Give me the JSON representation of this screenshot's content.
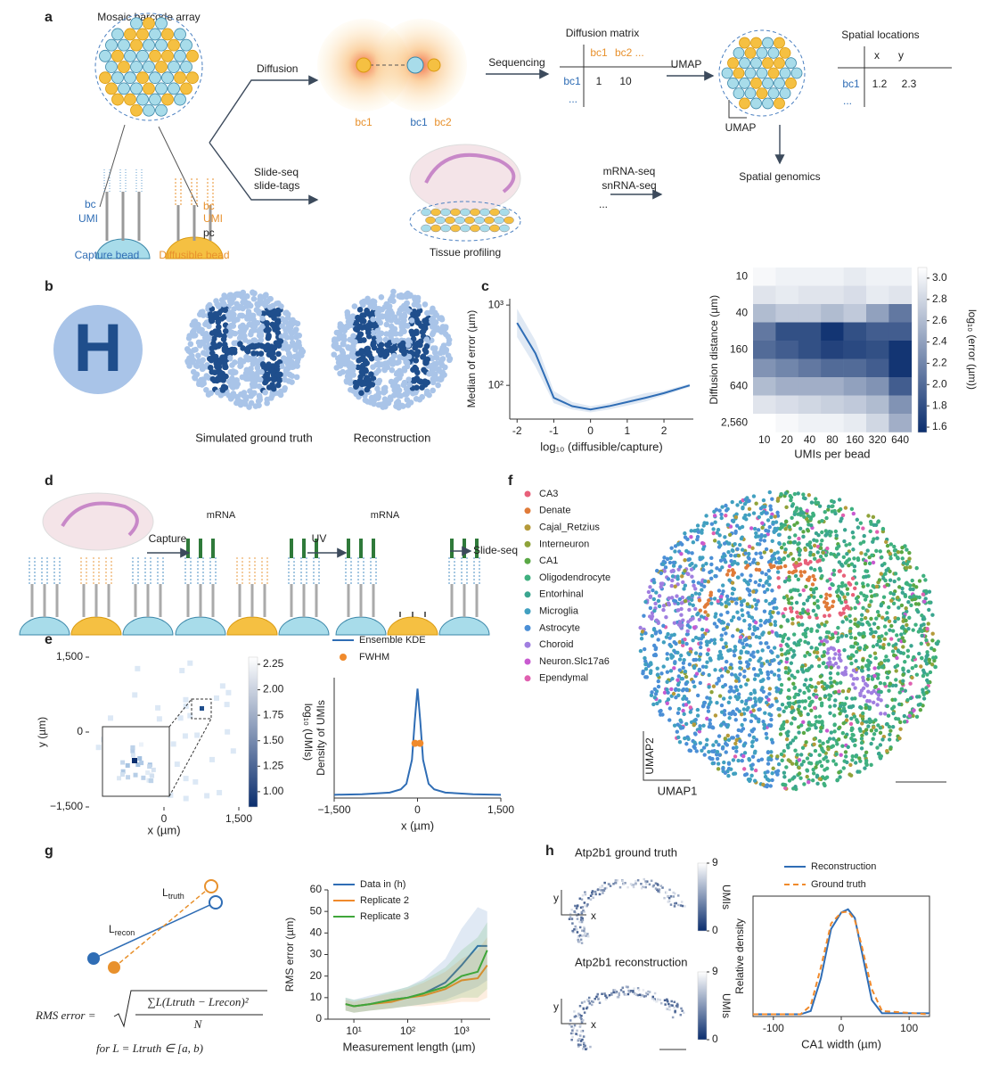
{
  "panels": {
    "a": {
      "letter": "a",
      "array_title": "Mosaic barcode array",
      "capture": {
        "bc": "bc",
        "umi": "UMI"
      },
      "diffusible": {
        "bc": "bc",
        "umi": "UMI",
        "pc": "pc"
      },
      "capture_bead": "Capture bead",
      "diffusible_bead": "Diffusible bead",
      "diffusion": "Diffusion",
      "slide": [
        "Slide-seq",
        "slide-tags"
      ],
      "bc1_left": "bc1",
      "bc1_right": "bc1",
      "bc2_right": "bc2",
      "sequencing": "Sequencing",
      "matrix": {
        "title": "Diffusion matrix",
        "col1": "bc1",
        "col2": "bc2 ...",
        "row1": "bc1",
        "cell1": "1",
        "cell2": "10",
        "more": "..."
      },
      "umap_arrow": "UMAP",
      "umap_scale": "UMAP",
      "spatial": {
        "title": "Spatial locations",
        "x": "x",
        "y": "y",
        "row1": "bc1",
        "cell1": "1.2",
        "cell2": "2.3",
        "more": "..."
      },
      "spatial_genomics": "Spatial genomics",
      "tissue_profiling": "Tissue profiling",
      "seq": [
        "mRNA-seq",
        "snRNA-seq",
        "..."
      ]
    },
    "b": {
      "letter": "b",
      "glyph": "H",
      "ground_truth": "Simulated ground truth",
      "reconstruction": "Reconstruction"
    },
    "c": {
      "letter": "c"
    },
    "d": {
      "letter": "d",
      "capture": "Capture",
      "mrna1": "mRNA",
      "mrna2": "mRNA",
      "uv": "UV",
      "slide_seq": "Slide-seq"
    },
    "e": {
      "letter": "e"
    },
    "f": {
      "letter": "f",
      "umap1": "UMAP1",
      "umap2": "UMAP2",
      "legend": [
        {
          "name": "CA3",
          "color": "#e8607a"
        },
        {
          "name": "Denate",
          "color": "#e07b39"
        },
        {
          "name": "Cajal_Retzius",
          "color": "#b59a3a"
        },
        {
          "name": "Interneuron",
          "color": "#8fa33a"
        },
        {
          "name": "CA1",
          "color": "#5aa845"
        },
        {
          "name": "Oligodendrocyte",
          "color": "#3fb07f"
        },
        {
          "name": "Entorhinal",
          "color": "#3aa58f"
        },
        {
          "name": "Microglia",
          "color": "#41a0c0"
        },
        {
          "name": "Astrocyte",
          "color": "#4b8fd6"
        },
        {
          "name": "Choroid",
          "color": "#a07ee0"
        },
        {
          "name": "Neuron.Slc17a6",
          "color": "#c85ad0"
        },
        {
          "name": "Ependymal",
          "color": "#e060b0"
        }
      ]
    },
    "g": {
      "letter": "g",
      "l_truth": {
        "main": "L",
        "sub": "truth"
      },
      "l_recon": {
        "main": "L",
        "sub": "recon"
      },
      "formula": {
        "lhs": "RMS error =",
        "numerator": "∑L(Ltruth − Lrecon)²",
        "denominator": "N",
        "domain": "for L = Ltruth ∈ [a, b)"
      }
    },
    "h": {
      "letter": "h"
    }
  },
  "chart_data": [
    {
      "type": "line",
      "x_label": "log₁₀ (diffusible/capture)",
      "y_label": "Median of error (µm)",
      "log_y": true,
      "xlim": [
        -2.2,
        2.8
      ],
      "xticks": [
        -2,
        -1,
        0,
        1,
        2
      ],
      "ylim": [
        38,
        1200
      ],
      "yticks": [
        {
          "value": 100,
          "label": "10²"
        },
        {
          "value": 1000,
          "label": "10³"
        }
      ],
      "x": [
        -2,
        -1.5,
        -1,
        -0.5,
        0,
        0.5,
        1,
        1.5,
        2,
        2.7
      ],
      "series": [
        {
          "color": "#2f6db5",
          "values": [
            600,
            250,
            70,
            55,
            50,
            55,
            62,
            70,
            80,
            100
          ],
          "lower": [
            400,
            170,
            60,
            50,
            46,
            50,
            56,
            63,
            75,
            95
          ],
          "upper": [
            900,
            360,
            85,
            62,
            55,
            60,
            70,
            80,
            86,
            105
          ]
        }
      ]
    },
    {
      "type": "heatmap",
      "x_label": "UMIs per bead",
      "y_label": "Diffusion distance (µm)",
      "categories": [
        "10",
        "20",
        "40",
        "80",
        "160",
        "320",
        "640"
      ],
      "rows": [
        "10",
        null,
        "40",
        null,
        "160",
        null,
        "640",
        null,
        "2,560"
      ],
      "values": [
        [
          3.05,
          3.0,
          3.0,
          3.0,
          2.95,
          3.0,
          3.0
        ],
        [
          2.9,
          2.95,
          2.9,
          2.9,
          2.85,
          2.95,
          2.9
        ],
        [
          2.6,
          2.7,
          2.7,
          2.6,
          2.7,
          2.4,
          2.1
        ],
        [
          2.1,
          1.8,
          1.8,
          1.6,
          1.8,
          1.9,
          1.9
        ],
        [
          2.0,
          1.9,
          1.8,
          1.7,
          1.75,
          1.8,
          1.6
        ],
        [
          2.3,
          2.2,
          2.1,
          2.0,
          2.0,
          1.9,
          1.6
        ],
        [
          2.6,
          2.5,
          2.5,
          2.5,
          2.4,
          2.3,
          1.9
        ],
        [
          2.9,
          2.85,
          2.8,
          2.75,
          2.7,
          2.6,
          2.3
        ],
        [
          3.1,
          3.05,
          3.0,
          3.0,
          2.95,
          2.8,
          2.5
        ]
      ],
      "colorbar": {
        "label": "log₁₀ (error (µm))",
        "lim": [
          1.55,
          3.1
        ],
        "ticks": [
          1.6,
          1.8,
          {
            "value": 2,
            "label": "2.0"
          },
          2.2,
          2.4,
          2.6,
          2.8,
          {
            "value": 3,
            "label": "3.0"
          }
        ],
        "colors": [
          "#0b2e6e",
          "#ffffff"
        ]
      }
    },
    {
      "type": "hexbin",
      "x_label": "x (µm)",
      "y_label": "y (µm)",
      "xlim": [
        -1500,
        1500
      ],
      "ylim": [
        -1500,
        1500
      ],
      "xticks": [
        0,
        {
          "value": 1500,
          "label": "1,500"
        }
      ],
      "yticks": [
        {
          "value": -1500,
          "label": "−1,500"
        },
        0,
        {
          "value": 1500,
          "label": "1,500"
        }
      ],
      "colorbar": {
        "label": "log₁₀ (UMIs)",
        "lim": [
          0.85,
          2.32
        ],
        "ticks": [
          {
            "value": 1,
            "label": "1.00"
          },
          1.25,
          {
            "value": 1.5,
            "label": "1.50"
          },
          1.75,
          {
            "value": 2,
            "label": "2.00"
          },
          2.25
        ],
        "colors": [
          "#0b2e6e",
          "#ffffff"
        ]
      }
    },
    {
      "type": "line",
      "x_label": "x (µm)",
      "y_label": "Density of UMIs",
      "xlim": [
        -1500,
        1500
      ],
      "xticks": [
        {
          "value": -1500,
          "label": "−1,500"
        },
        0,
        {
          "value": 1500,
          "label": "1,500"
        }
      ],
      "ylim": [
        0,
        1.1
      ],
      "series": [
        {
          "name": "Ensemble KDE",
          "color": "#2f6db5",
          "x": [
            -1500,
            -1000,
            -500,
            -300,
            -200,
            -100,
            -50,
            0,
            50,
            100,
            200,
            300,
            500,
            1000,
            1500
          ],
          "values": [
            0.03,
            0.035,
            0.05,
            0.08,
            0.13,
            0.35,
            0.7,
            1.0,
            0.7,
            0.35,
            0.13,
            0.08,
            0.05,
            0.035,
            0.03
          ]
        },
        {
          "name": "FWHM",
          "color": "#f08a2c",
          "type": "scatter",
          "x": [
            -45,
            45
          ],
          "values": [
            0.5,
            0.5
          ]
        }
      ]
    },
    {
      "type": "line",
      "x_label": "Measurement length (µm)",
      "y_label": "RMS error (µm)",
      "log_x": true,
      "xlim": [
        3.3,
        3400
      ],
      "xticks": [
        {
          "value": 10,
          "label": "10¹"
        },
        {
          "value": 100,
          "label": "10²"
        },
        {
          "value": 1000,
          "label": "10³"
        }
      ],
      "ylim": [
        0,
        60
      ],
      "yticks": [
        0,
        10,
        20,
        30,
        40,
        50,
        60
      ],
      "x": [
        7,
        10,
        20,
        50,
        100,
        200,
        500,
        1000,
        2000,
        3000
      ],
      "series": [
        {
          "name": "Data in (h)",
          "color": "#2f6db5",
          "values": [
            7,
            6,
            7,
            9,
            10,
            12,
            17,
            25,
            34,
            34
          ],
          "lower": [
            4,
            3,
            4,
            5,
            6,
            7,
            9,
            12,
            15,
            18
          ],
          "upper": [
            10,
            9,
            11,
            13,
            15,
            19,
            28,
            42,
            52,
            50
          ]
        },
        {
          "name": "Replicate 2",
          "color": "#f08a2c",
          "values": [
            7,
            6,
            7,
            8,
            10,
            11,
            14,
            18,
            19,
            25
          ],
          "lower": [
            4,
            3,
            4,
            5,
            6,
            6,
            7,
            8,
            8,
            10
          ],
          "upper": [
            9,
            8,
            10,
            12,
            14,
            17,
            22,
            28,
            32,
            38
          ]
        },
        {
          "name": "Replicate 3",
          "color": "#3fa63a",
          "values": [
            7,
            6,
            7,
            9,
            10,
            12,
            15,
            20,
            22,
            32
          ],
          "lower": [
            4,
            3,
            4,
            5,
            6,
            7,
            8,
            10,
            10,
            14
          ],
          "upper": [
            10,
            9,
            10,
            13,
            15,
            18,
            24,
            32,
            38,
            45
          ]
        }
      ]
    },
    {
      "type": "line",
      "x_label": "CA1 width (µm)",
      "y_label": "Relative density",
      "xlim": [
        -130,
        130
      ],
      "xticks": [
        -100,
        0,
        100
      ],
      "ylim": [
        0,
        1.1
      ],
      "x": [
        -130,
        -60,
        -45,
        -30,
        -15,
        0,
        10,
        20,
        30,
        45,
        60,
        130
      ],
      "series": [
        {
          "name": "Reconstruction",
          "color": "#2f6db5",
          "values": [
            0.02,
            0.02,
            0.05,
            0.35,
            0.8,
            0.95,
            0.98,
            0.9,
            0.6,
            0.15,
            0.03,
            0.03
          ]
        },
        {
          "name": "Ground truth",
          "color": "#f08a2c",
          "dash": true,
          "values": [
            0.02,
            0.02,
            0.1,
            0.45,
            0.85,
            0.95,
            0.96,
            0.88,
            0.65,
            0.25,
            0.05,
            0.02
          ]
        }
      ]
    },
    {
      "type": "image",
      "title": "Atp2b1 ground truth",
      "x_label": "x",
      "y_label": "y",
      "colorbar": {
        "label": "UMIs",
        "lim": [
          0,
          9
        ],
        "ticks": [
          0,
          9
        ],
        "colors": [
          "#0b2e6e",
          "#ffffff"
        ]
      }
    },
    {
      "type": "image",
      "title": "Atp2b1 reconstruction",
      "x_label": "x",
      "y_label": "y",
      "colorbar": {
        "label": "UMIs",
        "lim": [
          0,
          9
        ],
        "ticks": [
          0,
          9
        ],
        "colors": [
          "#0b2e6e",
          "#ffffff"
        ]
      }
    }
  ]
}
